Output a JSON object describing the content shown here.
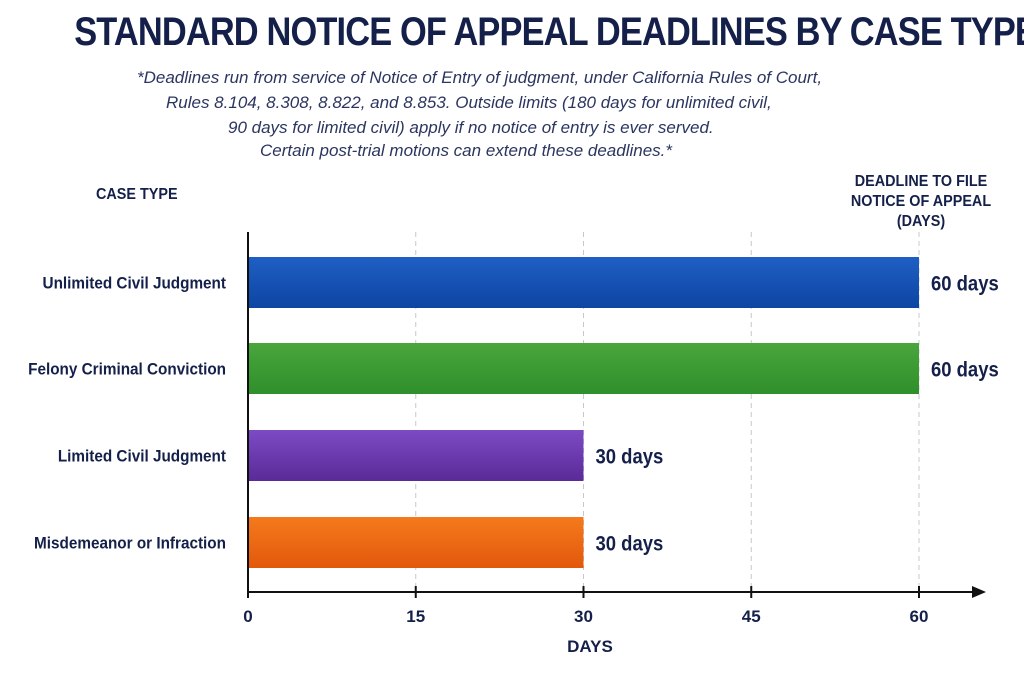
{
  "chart_data": {
    "type": "bar",
    "orientation": "horizontal",
    "title": "STANDARD NOTICE OF APPEAL DEADLINES BY CASE TYPE",
    "subtitle_lines": [
      "*Deadlines run from service of Notice of Entry of judgment, under California Rules of Court,",
      "Rules 8.104, 8.308, 8.822, and 8.853. Outside limits (180 days for unlimited civil,",
      "90 days for limited civil) apply if no notice of entry is ever served.",
      "Certain post-trial motions can extend these deadlines.*"
    ],
    "category_header": "CASE TYPE",
    "value_header_lines": [
      "DEADLINE TO FILE",
      "NOTICE OF APPEAL",
      "(DAYS)"
    ],
    "xlabel": "DAYS",
    "xlim": [
      0,
      60
    ],
    "xticks": [
      0,
      15,
      30,
      45,
      60
    ],
    "grid": "vertical dashed",
    "categories": [
      "Unlimited Civil Judgment",
      "Felony Criminal Conviction",
      "Limited Civil Judgment",
      "Misdemeanor or Infraction"
    ],
    "values": [
      60,
      60,
      30,
      30
    ],
    "data_labels": [
      "60 days",
      "60 days",
      "30 days",
      "30 days"
    ],
    "colors": [
      [
        "#1f5fc4",
        "#0d45a3"
      ],
      [
        "#4aa63c",
        "#2f8f2b"
      ],
      [
        "#7c4bc4",
        "#5a2a98"
      ],
      [
        "#f57a1c",
        "#e2580c"
      ]
    ]
  }
}
